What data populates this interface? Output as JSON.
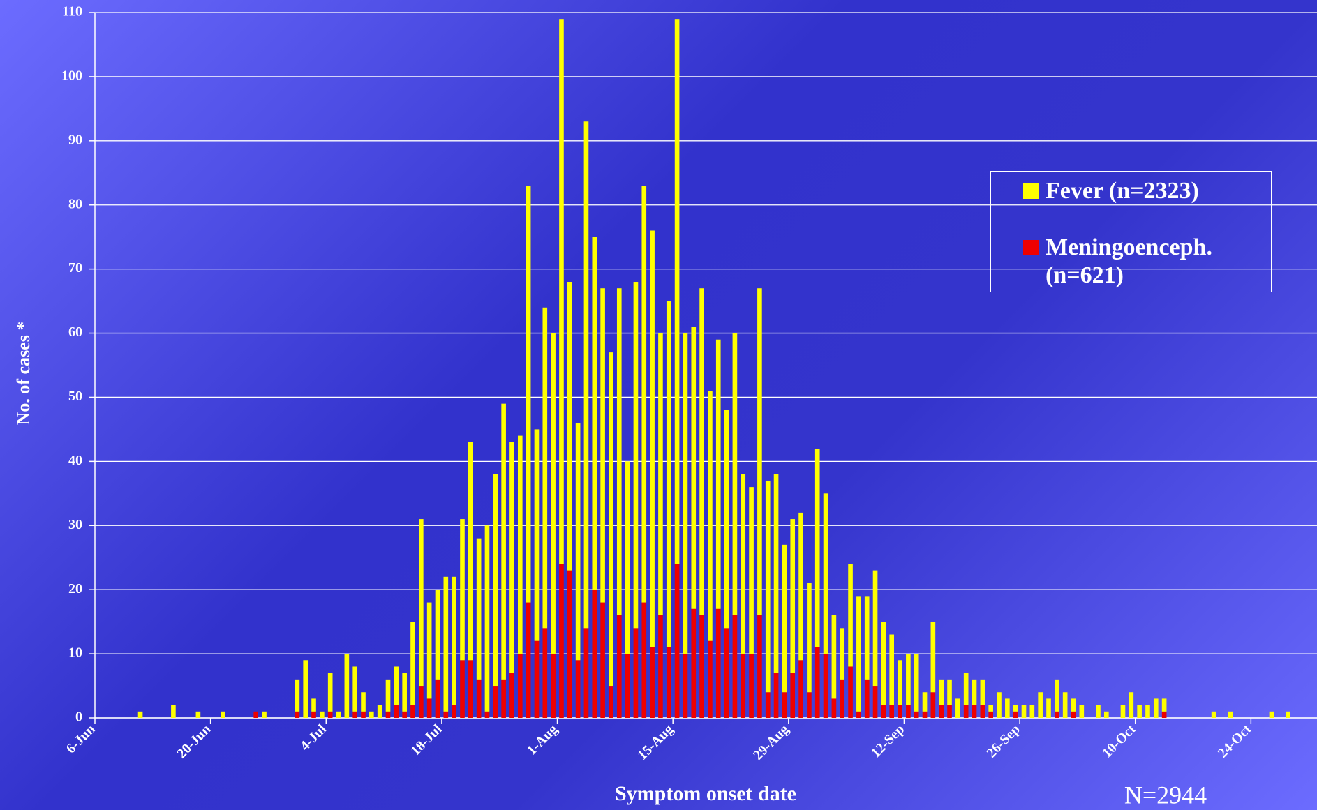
{
  "chart_data": {
    "type": "bar",
    "stacked": true,
    "ylabel": "No. of cases *",
    "xlabel": "Symptom onset date",
    "annotation": "N=2944",
    "categories": [
      "6-Jun",
      null,
      null,
      null,
      null,
      null,
      null,
      null,
      null,
      null,
      null,
      null,
      null,
      null,
      "20-Jun",
      null,
      null,
      null,
      null,
      null,
      null,
      null,
      null,
      null,
      null,
      null,
      null,
      null,
      "4-Jul",
      null,
      null,
      null,
      null,
      null,
      null,
      null,
      null,
      null,
      null,
      null,
      null,
      null,
      "18-Jul",
      null,
      null,
      null,
      null,
      null,
      null,
      null,
      null,
      null,
      null,
      null,
      null,
      null,
      "1-Aug",
      null,
      null,
      null,
      null,
      null,
      null,
      null,
      null,
      null,
      null,
      null,
      null,
      null,
      "15-Aug",
      null,
      null,
      null,
      null,
      null,
      null,
      null,
      null,
      null,
      null,
      null,
      null,
      null,
      "29-Aug",
      null,
      null,
      null,
      null,
      null,
      null,
      null,
      null,
      null,
      null,
      null,
      null,
      null,
      "12-Sep",
      null,
      null,
      null,
      null,
      null,
      null,
      null,
      null,
      null,
      null,
      null,
      null,
      null,
      "26-Sep",
      null,
      null,
      null,
      null,
      null,
      null,
      null,
      null,
      null,
      null,
      null,
      null,
      null,
      "10-Oct",
      null,
      null,
      null,
      null,
      null,
      null,
      null,
      null,
      null,
      null,
      null,
      null,
      null,
      "24-Oct",
      null,
      null,
      null,
      null,
      null,
      null,
      null
    ],
    "series": [
      {
        "name": "Fever (n=2323)",
        "color": "#ffff00",
        "values": [
          0,
          0,
          0,
          0,
          0,
          1,
          0,
          0,
          0,
          2,
          0,
          0,
          1,
          0,
          0,
          1,
          0,
          0,
          0,
          0,
          1,
          0,
          0,
          0,
          5,
          9,
          2,
          1,
          6,
          1,
          10,
          7,
          3,
          1,
          2,
          5,
          6,
          6,
          13,
          26,
          15,
          14,
          21,
          20,
          22,
          34,
          22,
          29,
          33,
          43,
          36,
          34,
          65,
          33,
          50,
          50,
          85,
          45,
          37,
          79,
          55,
          49,
          52,
          51,
          30,
          54,
          65,
          65,
          44,
          54,
          85,
          50,
          44,
          51,
          39,
          42,
          34,
          44,
          28,
          26,
          51,
          33,
          31,
          23,
          24,
          23,
          17,
          31,
          25,
          13,
          8,
          16,
          18,
          13,
          18,
          13,
          11,
          7,
          8,
          9,
          3,
          11,
          4,
          4,
          3,
          5,
          4,
          4,
          1,
          4,
          3,
          1,
          2,
          2,
          4,
          3,
          5,
          4,
          2,
          2,
          0,
          2,
          1,
          0,
          2,
          4,
          2,
          2,
          3,
          2,
          0,
          0,
          0,
          0,
          0,
          1,
          0,
          1,
          0,
          0,
          0,
          0,
          1,
          0,
          1,
          0,
          0,
          0
        ]
      },
      {
        "name": "Meningoenceph. (n=621)",
        "color": "#ee0000",
        "values": [
          0,
          0,
          0,
          0,
          0,
          0,
          0,
          0,
          0,
          0,
          0,
          0,
          0,
          0,
          0,
          0,
          0,
          0,
          0,
          1,
          0,
          0,
          0,
          0,
          1,
          0,
          1,
          0,
          1,
          0,
          0,
          1,
          1,
          0,
          0,
          1,
          2,
          1,
          2,
          5,
          3,
          6,
          1,
          2,
          9,
          9,
          6,
          1,
          5,
          6,
          7,
          10,
          18,
          12,
          14,
          10,
          24,
          23,
          9,
          14,
          20,
          18,
          5,
          16,
          10,
          14,
          18,
          11,
          16,
          11,
          24,
          10,
          17,
          16,
          12,
          17,
          14,
          16,
          10,
          10,
          16,
          4,
          7,
          4,
          7,
          9,
          4,
          11,
          10,
          3,
          6,
          8,
          1,
          6,
          5,
          2,
          2,
          2,
          2,
          1,
          1,
          4,
          2,
          2,
          0,
          2,
          2,
          2,
          1,
          0,
          0,
          1,
          0,
          0,
          0,
          0,
          1,
          0,
          1,
          0,
          0,
          0,
          0,
          0,
          0,
          0,
          0,
          0,
          0,
          1,
          0,
          0,
          0,
          0,
          0,
          0,
          0,
          0,
          0,
          0,
          0,
          0,
          0,
          0,
          0,
          0,
          0,
          0
        ]
      }
    ],
    "ylim": [
      0,
      110
    ],
    "yticks": [
      0,
      10,
      20,
      30,
      40,
      50,
      60,
      70,
      80,
      90,
      100,
      110
    ],
    "grid": true
  }
}
